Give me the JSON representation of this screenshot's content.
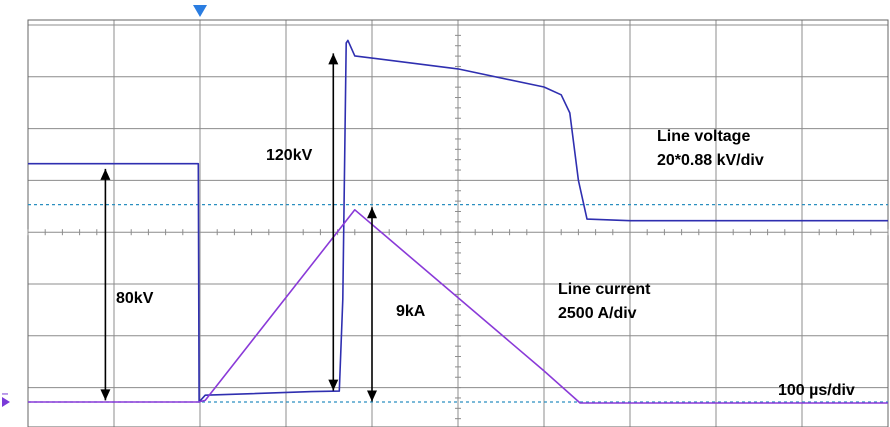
{
  "chart_data": {
    "type": "line",
    "title": "",
    "xlabel": "",
    "ylabel": "",
    "grid": true,
    "x_divisions": 10,
    "y_divisions": 8,
    "x_unit": "µs",
    "x_range": [
      0,
      1000
    ],
    "y_range_div": [
      0,
      8
    ],
    "trigger_marker_time": 200,
    "series": [
      {
        "name": "Line voltage",
        "color": "#2f2fb0",
        "points": [
          [
            0,
            4.62
          ],
          [
            198,
            4.62
          ],
          [
            199,
            0.02
          ],
          [
            206,
            0.15
          ],
          [
            330,
            0.22
          ],
          [
            362,
            0.23
          ],
          [
            366,
            2.0
          ],
          [
            370,
            6.95
          ],
          [
            372,
            7.0
          ],
          [
            380,
            6.7
          ],
          [
            500,
            6.45
          ],
          [
            600,
            6.1
          ],
          [
            620,
            5.95
          ],
          [
            630,
            5.6
          ],
          [
            640,
            4.3
          ],
          [
            650,
            3.55
          ],
          [
            700,
            3.52
          ],
          [
            800,
            3.52
          ],
          [
            1000,
            3.52
          ]
        ]
      },
      {
        "name": "Line current",
        "color": "#8a3ad8",
        "points": [
          [
            0,
            0.02
          ],
          [
            198,
            0.02
          ],
          [
            206,
            0.05
          ],
          [
            380,
            3.73
          ],
          [
            600,
            0.62
          ],
          [
            642,
            0.0
          ],
          [
            700,
            0.0
          ],
          [
            800,
            0.0
          ],
          [
            1000,
            0.0
          ]
        ]
      }
    ],
    "reference_levels_div": [
      0.02,
      3.83
    ],
    "annotations": {
      "voltage_before": "80kV",
      "voltage_jump": "120kV",
      "current_peak": "9kA",
      "voltage_label": "Line voltage",
      "voltage_scale": "20*0.88 kV/div",
      "current_label": "Line current",
      "current_scale": "2500 A/div",
      "time_scale": "100 µs/div"
    }
  }
}
